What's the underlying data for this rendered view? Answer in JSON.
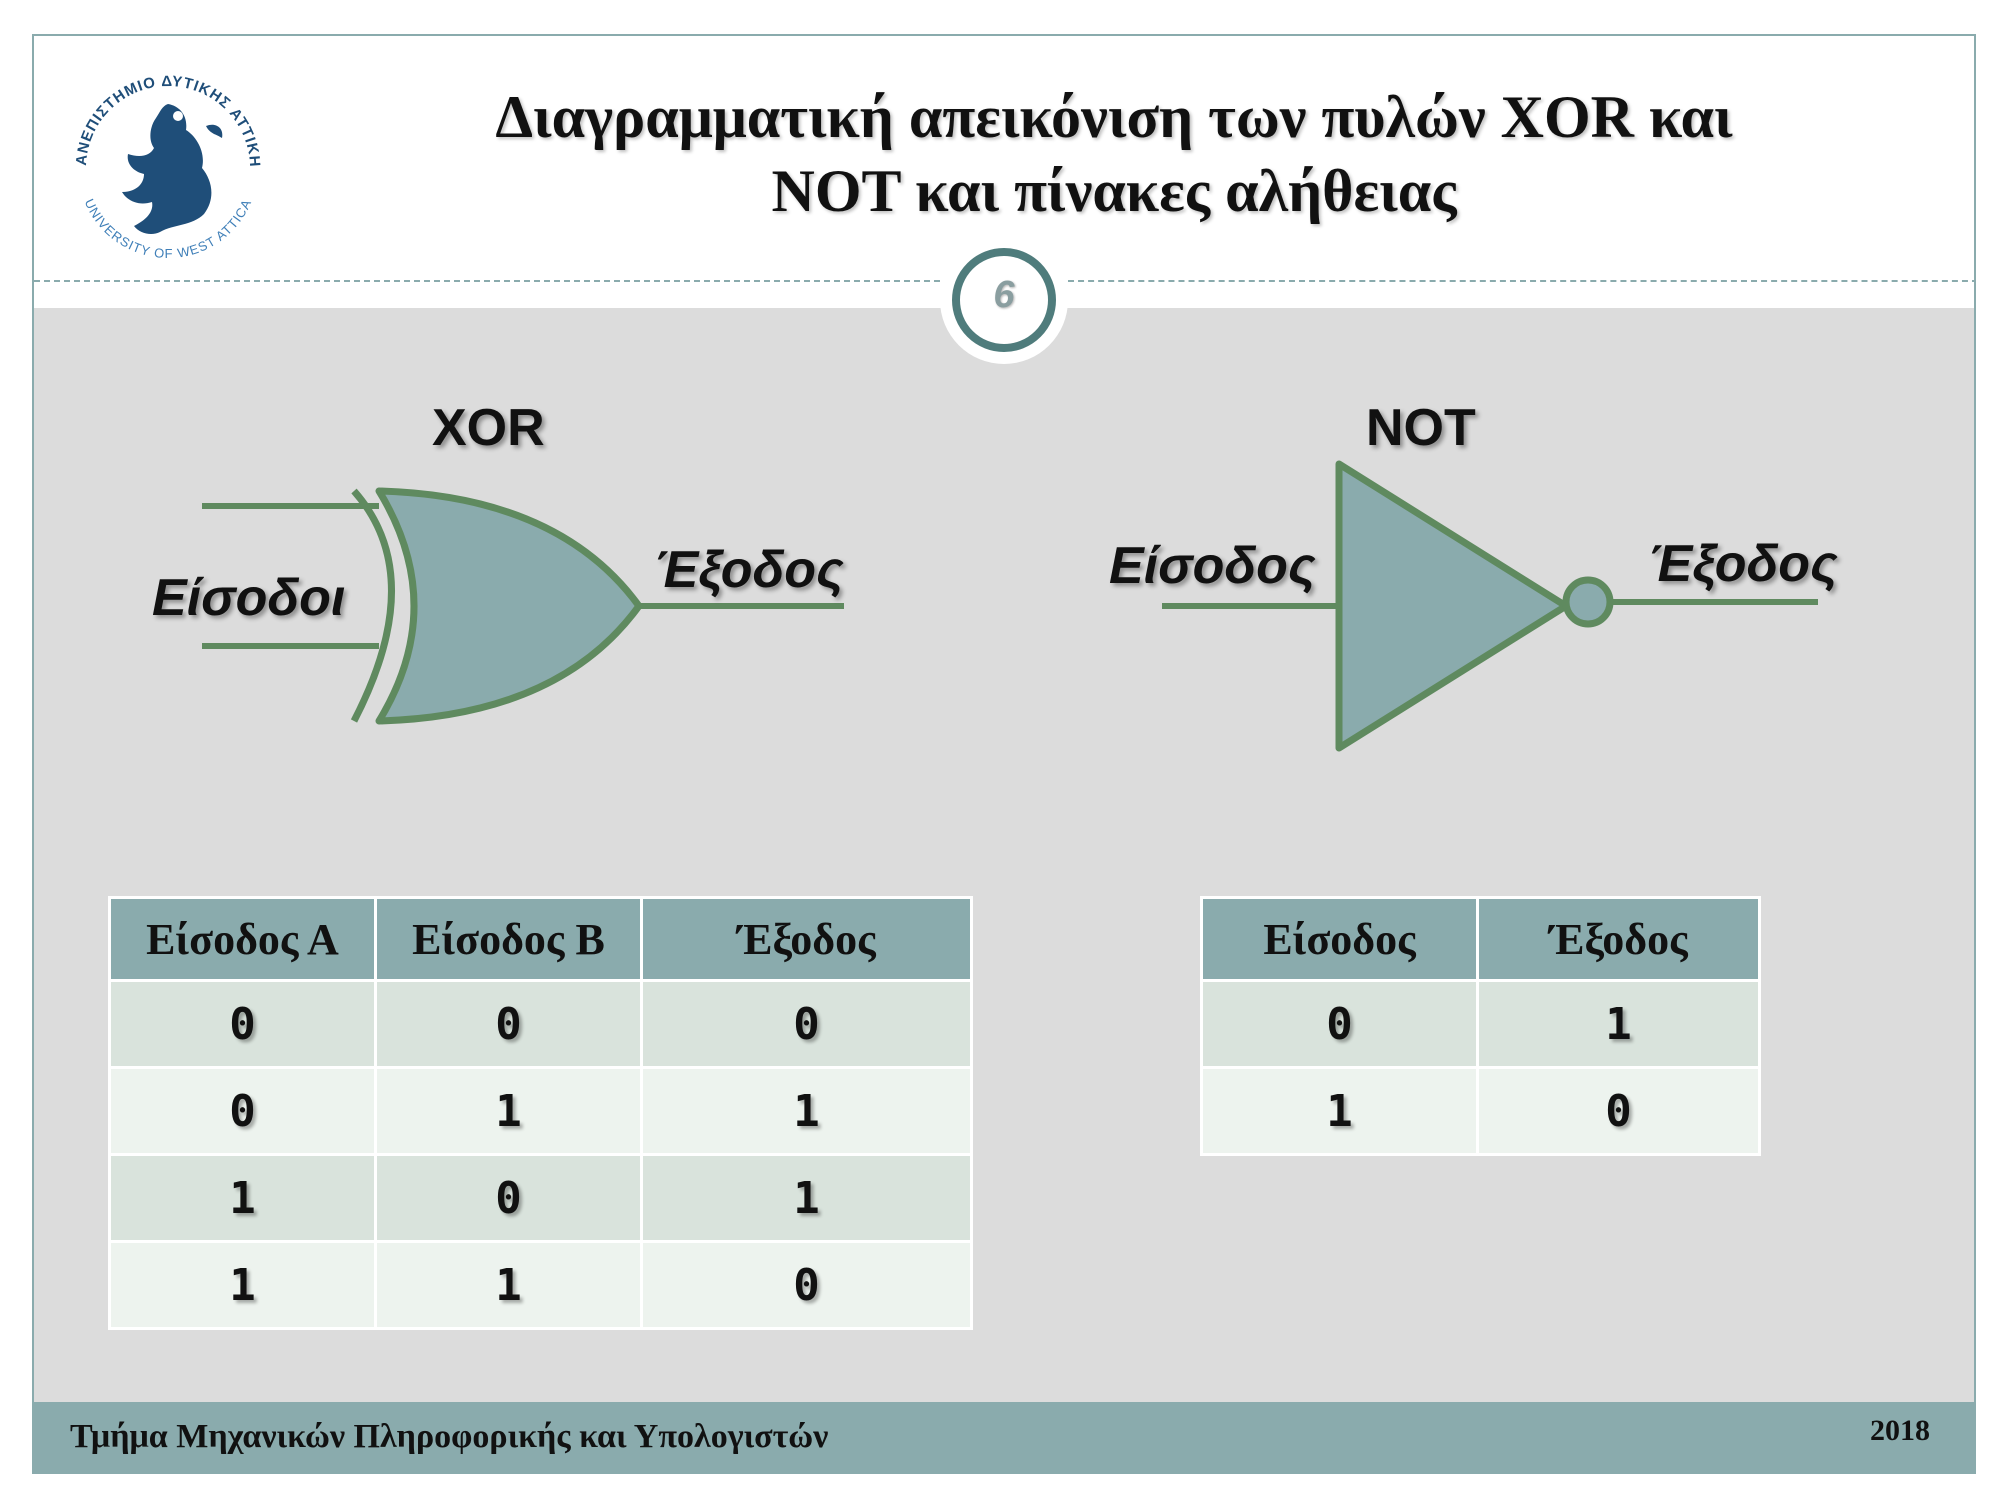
{
  "slide": {
    "title_line1": "Διαγραμματική απεικόνιση των πυλών XOR και",
    "title_line2": "NOT και πίνακες αλήθειας",
    "page_number": "6"
  },
  "logo": {
    "arc_top_text": "ΠΑΝΕΠΙΣΤΗΜΙΟ ΔΥΤΙΚΗΣ ΑΤΤΙΚΗΣ",
    "arc_bottom_text": "UNIVERSITY OF WEST ATTICA",
    "color": "#1f4e79"
  },
  "xor_gate": {
    "title": "XOR",
    "input_label": "Είσοδοι",
    "output_label": "Έξοδος"
  },
  "not_gate": {
    "title": "NOT",
    "input_label": "Είσοδος",
    "output_label": "Έξοδος"
  },
  "xor_table": {
    "headers": [
      "Είσοδος Α",
      "Είσοδος Β",
      "Έξοδος"
    ],
    "rows": [
      [
        "0",
        "0",
        "0"
      ],
      [
        "0",
        "1",
        "1"
      ],
      [
        "1",
        "0",
        "1"
      ],
      [
        "1",
        "1",
        "0"
      ]
    ]
  },
  "not_table": {
    "headers": [
      "Είσοδος",
      "Έξοδος"
    ],
    "rows": [
      [
        "0",
        "1"
      ],
      [
        "1",
        "0"
      ]
    ]
  },
  "footer": {
    "department": "Τμήμα Μηχανικών Πληροφορικής και Υπολογιστών",
    "year": "2018"
  },
  "colors": {
    "accent": "#8aabad",
    "gate_fill": "#8aabad",
    "gate_stroke": "#5f8a5f",
    "content_bg": "#dcdcdc"
  }
}
